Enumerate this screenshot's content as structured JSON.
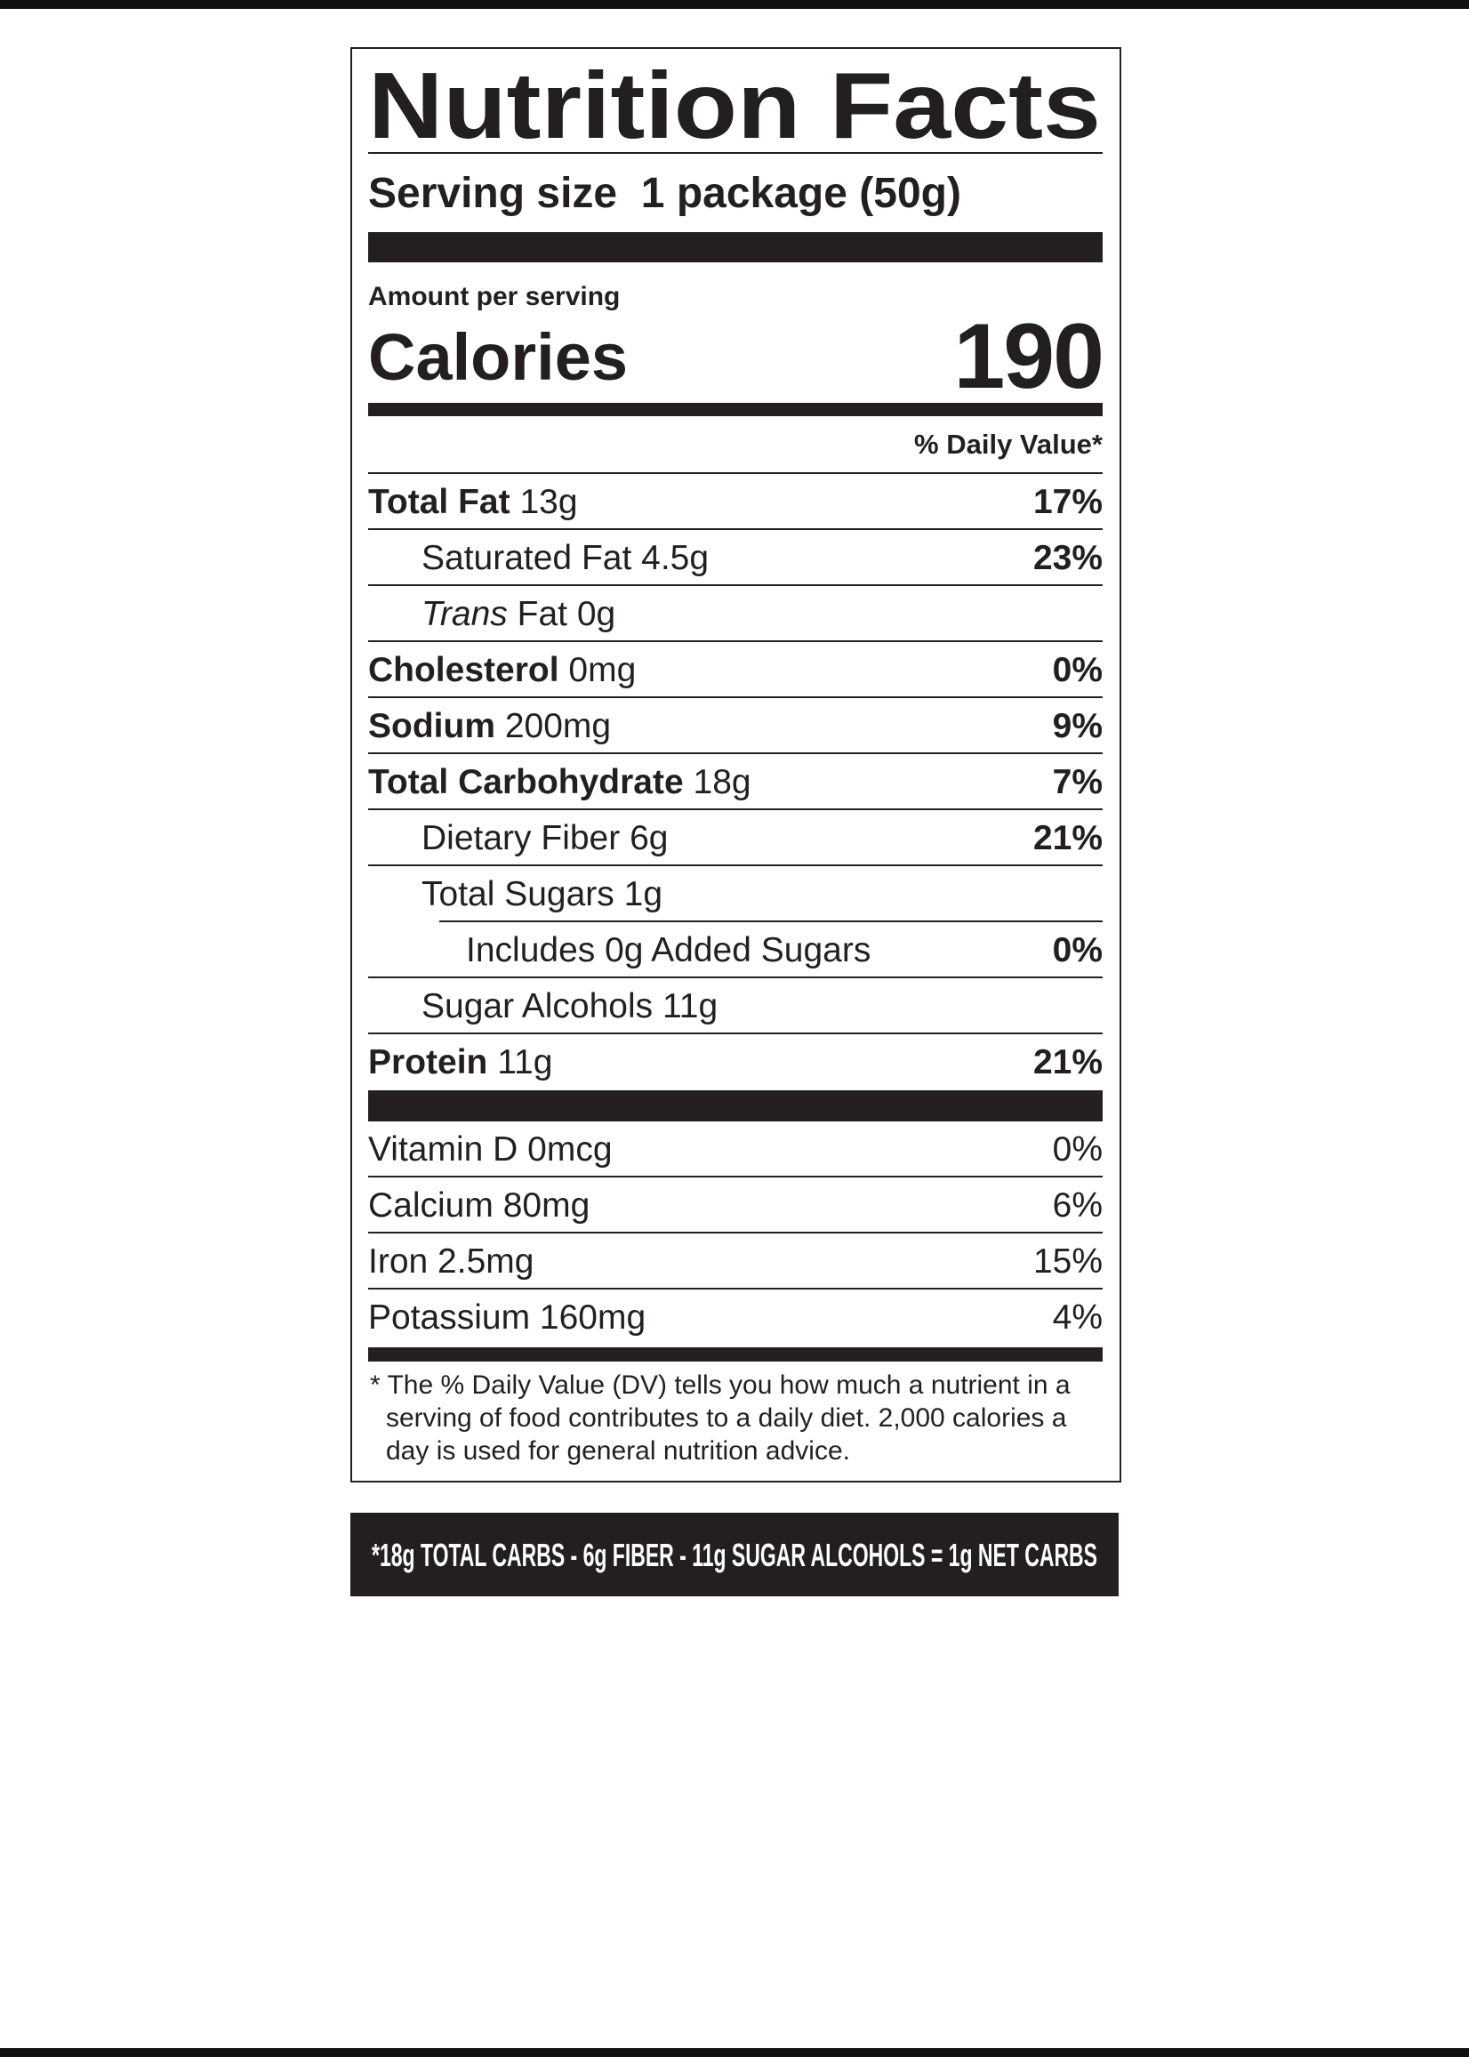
{
  "title": "Nutrition Facts",
  "serving": {
    "label": "Serving size",
    "value": "1 package (50g)"
  },
  "amount_per_serving": "Amount per serving",
  "calories": {
    "label": "Calories",
    "value": "190"
  },
  "dv_header": "% Daily Value*",
  "nutrients": [
    {
      "name": "Total Fat",
      "amount": "13g",
      "dv": "17%",
      "bold": true,
      "indent": 0
    },
    {
      "name": "Saturated Fat",
      "amount": "4.5g",
      "dv": "23%",
      "bold": false,
      "indent": 1
    },
    {
      "name_italic": "Trans",
      "name": "Fat",
      "amount": "0g",
      "bold": false,
      "indent": 1
    },
    {
      "name": "Cholesterol",
      "amount": "0mg",
      "dv": "0%",
      "bold": true,
      "indent": 0
    },
    {
      "name": "Sodium",
      "amount": "200mg",
      "dv": "9%",
      "bold": true,
      "indent": 0
    },
    {
      "name": "Total Carbohydrate",
      "amount": "18g",
      "dv": "7%",
      "bold": true,
      "indent": 0
    },
    {
      "name": "Dietary Fiber",
      "amount": "6g",
      "dv": "21%",
      "bold": false,
      "indent": 1
    },
    {
      "name": "Total Sugars",
      "amount": "1g",
      "bold": false,
      "indent": 1
    },
    {
      "name": "Includes 0g Added Sugars",
      "dv": "0%",
      "bold": false,
      "indent": 2
    },
    {
      "name": "Sugar Alcohols",
      "amount": "11g",
      "bold": false,
      "indent": 1
    },
    {
      "name": "Protein",
      "amount": "11g",
      "dv": "21%",
      "bold": true,
      "indent": 0
    }
  ],
  "vitamins": [
    {
      "name": "Vitamin D 0mcg",
      "dv": "0%"
    },
    {
      "name": "Calcium 80mg",
      "dv": "6%"
    },
    {
      "name": "Iron 2.5mg",
      "dv": "15%"
    },
    {
      "name": "Potassium 160mg",
      "dv": "4%"
    }
  ],
  "footnote": "* The % Daily Value (DV) tells you how much a nutrient in a serving of food contributes to a daily diet. 2,000 calories a day is used for general nutrition advice.",
  "net_carbs": "*18g TOTAL CARBS - 6g FIBER - 11g SUGAR ALCOHOLS = 1g NET CARBS"
}
